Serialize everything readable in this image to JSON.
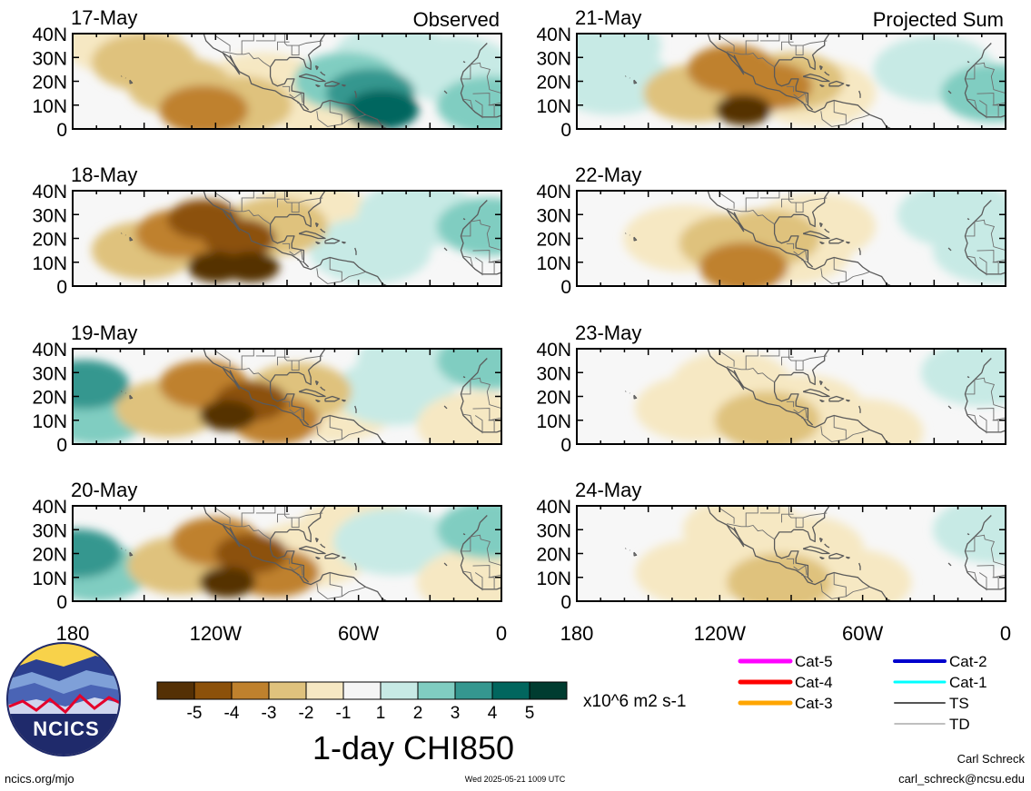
{
  "panels": [
    {
      "date": "17-May",
      "corner": "Observed",
      "column": "left",
      "row": 0,
      "anomalies": [
        {
          "lon": -160,
          "lat": 37,
          "val": -1
        },
        {
          "lon": -150,
          "lat": 28,
          "val": -2
        },
        {
          "lon": -135,
          "lat": 18,
          "val": -2
        },
        {
          "lon": -125,
          "lat": 8,
          "val": -3
        },
        {
          "lon": -110,
          "lat": 10,
          "val": -2
        },
        {
          "lon": -100,
          "lat": 18,
          "val": -1
        },
        {
          "lon": -70,
          "lat": 8,
          "val": -1
        },
        {
          "lon": -65,
          "lat": 20,
          "val": 2
        },
        {
          "lon": -55,
          "lat": 15,
          "val": 3
        },
        {
          "lon": -50,
          "lat": 8,
          "val": 4
        },
        {
          "lon": -45,
          "lat": 30,
          "val": 1
        },
        {
          "lon": -20,
          "lat": 25,
          "val": 1
        },
        {
          "lon": -5,
          "lat": 10,
          "val": 2
        }
      ]
    },
    {
      "date": "18-May",
      "corner": "",
      "column": "left",
      "row": 1,
      "anomalies": [
        {
          "lon": -150,
          "lat": 15,
          "val": -2
        },
        {
          "lon": -135,
          "lat": 22,
          "val": -3
        },
        {
          "lon": -125,
          "lat": 28,
          "val": -4
        },
        {
          "lon": -120,
          "lat": 8,
          "val": -5
        },
        {
          "lon": -105,
          "lat": 8,
          "val": -5
        },
        {
          "lon": -110,
          "lat": 20,
          "val": -4
        },
        {
          "lon": -95,
          "lat": 25,
          "val": -2
        },
        {
          "lon": -80,
          "lat": 30,
          "val": -1
        },
        {
          "lon": -55,
          "lat": 15,
          "val": 1
        },
        {
          "lon": -35,
          "lat": 30,
          "val": 1
        },
        {
          "lon": -5,
          "lat": 25,
          "val": 2
        }
      ]
    },
    {
      "date": "19-May",
      "corner": "",
      "column": "left",
      "row": 2,
      "anomalies": [
        {
          "lon": -175,
          "lat": 25,
          "val": 3
        },
        {
          "lon": -170,
          "lat": 12,
          "val": 2
        },
        {
          "lon": -140,
          "lat": 15,
          "val": -2
        },
        {
          "lon": -125,
          "lat": 25,
          "val": -3
        },
        {
          "lon": -115,
          "lat": 12,
          "val": -5
        },
        {
          "lon": -105,
          "lat": 18,
          "val": -4
        },
        {
          "lon": -95,
          "lat": 10,
          "val": -3
        },
        {
          "lon": -85,
          "lat": 22,
          "val": -2
        },
        {
          "lon": -70,
          "lat": 15,
          "val": -1
        },
        {
          "lon": -45,
          "lat": 22,
          "val": 1
        },
        {
          "lon": -35,
          "lat": 35,
          "val": 1
        },
        {
          "lon": -10,
          "lat": 8,
          "val": -1
        },
        {
          "lon": -5,
          "lat": 35,
          "val": 2
        }
      ]
    },
    {
      "date": "20-May",
      "corner": "",
      "column": "left",
      "row": 3,
      "anomalies": [
        {
          "lon": -178,
          "lat": 20,
          "val": 3
        },
        {
          "lon": -170,
          "lat": 12,
          "val": 2
        },
        {
          "lon": -135,
          "lat": 15,
          "val": -2
        },
        {
          "lon": -120,
          "lat": 25,
          "val": -3
        },
        {
          "lon": -115,
          "lat": 8,
          "val": -5
        },
        {
          "lon": -105,
          "lat": 20,
          "val": -4
        },
        {
          "lon": -95,
          "lat": 12,
          "val": -3
        },
        {
          "lon": -80,
          "lat": 20,
          "val": -1
        },
        {
          "lon": -60,
          "lat": 30,
          "val": -1
        },
        {
          "lon": -45,
          "lat": 25,
          "val": 1
        },
        {
          "lon": -10,
          "lat": 8,
          "val": -1
        },
        {
          "lon": -5,
          "lat": 30,
          "val": 2
        }
      ]
    },
    {
      "date": "21-May",
      "corner": "Projected Sum",
      "column": "right",
      "row": 0,
      "anomalies": [
        {
          "lon": -170,
          "lat": 35,
          "val": 1
        },
        {
          "lon": -165,
          "lat": 20,
          "val": 1
        },
        {
          "lon": -130,
          "lat": 15,
          "val": -2
        },
        {
          "lon": -115,
          "lat": 25,
          "val": -3
        },
        {
          "lon": -110,
          "lat": 8,
          "val": -5
        },
        {
          "lon": -100,
          "lat": 18,
          "val": -3
        },
        {
          "lon": -90,
          "lat": 20,
          "val": -2
        },
        {
          "lon": -80,
          "lat": 15,
          "val": -1
        },
        {
          "lon": -30,
          "lat": 25,
          "val": 1
        },
        {
          "lon": -5,
          "lat": 15,
          "val": 2
        }
      ]
    },
    {
      "date": "22-May",
      "corner": "",
      "column": "right",
      "row": 1,
      "anomalies": [
        {
          "lon": -135,
          "lat": 20,
          "val": -1
        },
        {
          "lon": -115,
          "lat": 18,
          "val": -2
        },
        {
          "lon": -110,
          "lat": 8,
          "val": -3
        },
        {
          "lon": -100,
          "lat": 20,
          "val": -2
        },
        {
          "lon": -90,
          "lat": 15,
          "val": -1
        },
        {
          "lon": -80,
          "lat": 25,
          "val": -1
        },
        {
          "lon": -20,
          "lat": 30,
          "val": 1
        },
        {
          "lon": -5,
          "lat": 15,
          "val": 1
        }
      ]
    },
    {
      "date": "23-May",
      "corner": "",
      "column": "right",
      "row": 2,
      "anomalies": [
        {
          "lon": -130,
          "lat": 15,
          "val": -1
        },
        {
          "lon": -115,
          "lat": 25,
          "val": -1
        },
        {
          "lon": -100,
          "lat": 10,
          "val": -2
        },
        {
          "lon": -85,
          "lat": 15,
          "val": -1
        },
        {
          "lon": -60,
          "lat": 5,
          "val": -1
        },
        {
          "lon": -10,
          "lat": 30,
          "val": 1
        }
      ]
    },
    {
      "date": "24-May",
      "corner": "",
      "column": "right",
      "row": 3,
      "anomalies": [
        {
          "lon": -130,
          "lat": 12,
          "val": -1
        },
        {
          "lon": -110,
          "lat": 30,
          "val": -1
        },
        {
          "lon": -95,
          "lat": 8,
          "val": -2
        },
        {
          "lon": -85,
          "lat": 22,
          "val": -1
        },
        {
          "lon": -65,
          "lat": 8,
          "val": -1
        },
        {
          "lon": -5,
          "lat": 30,
          "val": 1
        }
      ]
    }
  ],
  "lat_ticks": [
    "40N",
    "30N",
    "20N",
    "10N",
    "0"
  ],
  "lon_ticks": [
    "180",
    "120W",
    "60W",
    "0"
  ],
  "colorbar": {
    "colors": [
      "#543005",
      "#8c510a",
      "#bf812d",
      "#dfc27d",
      "#f6e8c3",
      "#f5f5f5",
      "#c7eae5",
      "#80cdc1",
      "#35978f",
      "#01665e",
      "#003c30"
    ],
    "labels": [
      "-5",
      "-4",
      "-3",
      "-2",
      "-1",
      "1",
      "2",
      "3",
      "4",
      "5"
    ],
    "units": "x10^6 m2 s-1"
  },
  "title": "1-day CHI850",
  "storm_legend": [
    {
      "label": "Cat-5",
      "color": "#ff00ff",
      "width": 5
    },
    {
      "label": "Cat-4",
      "color": "#ff0000",
      "width": 5
    },
    {
      "label": "Cat-3",
      "color": "#ffa500",
      "width": 5
    },
    {
      "label": "Cat-2",
      "color": "#0000cd",
      "width": 4
    },
    {
      "label": "Cat-1",
      "color": "#00ffff",
      "width": 3
    },
    {
      "label": "TS",
      "color": "#555555",
      "width": 2
    },
    {
      "label": "TD",
      "color": "#aaaaaa",
      "width": 1.5
    }
  ],
  "logo_text": "NCICS",
  "footer": {
    "left": "ncics.org/mjo",
    "center": "Wed 2025-05-21 1009 UTC",
    "author": "Carl Schreck",
    "email": "carl_schreck@ncsu.edu"
  }
}
